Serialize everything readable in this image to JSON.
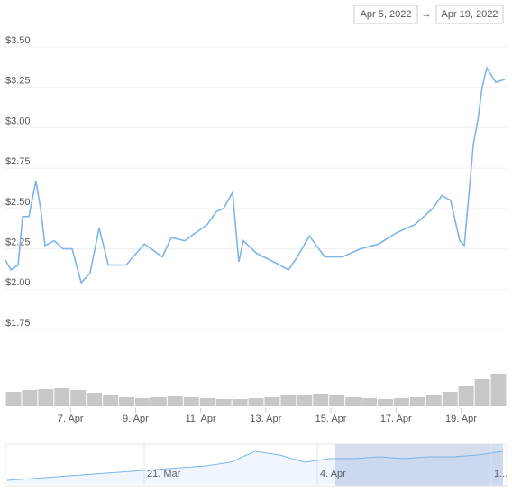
{
  "range": {
    "from": "Apr 5, 2022",
    "separator": "→",
    "to": "Apr 19, 2022"
  },
  "chart_data": {
    "type": "line",
    "x": [
      5.0,
      5.17,
      5.39,
      5.53,
      5.72,
      5.94,
      6.08,
      6.22,
      6.5,
      6.77,
      7.05,
      7.33,
      7.6,
      7.88,
      8.16,
      8.71,
      9.27,
      9.82,
      10.1,
      10.51,
      11.2,
      11.48,
      11.7,
      11.98,
      12.17,
      12.31,
      12.73,
      13.14,
      13.7,
      13.97,
      14.34,
      14.81,
      15.36,
      15.91,
      16.47,
      17.02,
      17.58,
      18.13,
      18.41,
      18.68,
      18.96,
      19.1,
      19.38,
      19.52,
      19.65,
      19.79,
      20.07,
      20.35
    ],
    "series": [
      {
        "color": "#7cb5ec",
        "values": [
          2.18,
          2.12,
          2.15,
          2.45,
          2.45,
          2.67,
          2.5,
          2.27,
          2.3,
          2.25,
          2.25,
          2.04,
          2.1,
          2.38,
          2.15,
          2.15,
          2.28,
          2.2,
          2.32,
          2.3,
          2.4,
          2.48,
          2.5,
          2.6,
          2.17,
          2.3,
          2.22,
          2.18,
          2.12,
          2.2,
          2.33,
          2.2,
          2.2,
          2.25,
          2.28,
          2.35,
          2.4,
          2.5,
          2.58,
          2.55,
          2.3,
          2.27,
          2.9,
          3.05,
          3.25,
          3.37,
          3.28,
          3.3
        ]
      }
    ],
    "xlim": [
      5.0,
      20.4
    ],
    "ylim": [
      1.75,
      3.5
    ],
    "yticks": [
      {
        "value": 1.75,
        "label": "$1.75"
      },
      {
        "value": 2.0,
        "label": "$2.00"
      },
      {
        "value": 2.25,
        "label": "$2.25"
      },
      {
        "value": 2.5,
        "label": "$2.50"
      },
      {
        "value": 2.75,
        "label": "$2.75"
      },
      {
        "value": 3.0,
        "label": "$3.00"
      },
      {
        "value": 3.25,
        "label": "$3.25"
      },
      {
        "value": 3.5,
        "label": "$3.50"
      }
    ],
    "xticks": [
      {
        "value": 7,
        "label": "7. Apr"
      },
      {
        "value": 9,
        "label": "9. Apr"
      },
      {
        "value": 11,
        "label": "11. Apr"
      },
      {
        "value": 13,
        "label": "13. Apr"
      },
      {
        "value": 15,
        "label": "15. Apr"
      },
      {
        "value": 17,
        "label": "17. Apr"
      },
      {
        "value": 19,
        "label": "19. Apr"
      }
    ],
    "grid": true,
    "volume": {
      "color": "#c8c8c8",
      "ylim": [
        0,
        40
      ],
      "values": [
        16,
        18,
        19,
        20,
        18,
        15,
        12,
        10,
        9,
        10,
        11,
        10,
        9,
        8,
        8,
        9,
        10,
        12,
        13,
        14,
        12,
        10,
        9,
        8,
        9,
        10,
        12,
        16,
        22,
        30,
        36
      ]
    },
    "navigator": {
      "color": "#7cb5ec",
      "ylim": [
        0,
        10
      ],
      "values": [
        1,
        1.5,
        2,
        2.5,
        3,
        3.5,
        4,
        4.5,
        5,
        6,
        9,
        8,
        6,
        7,
        7,
        7.5,
        7,
        7.5,
        7.5,
        8,
        9
      ],
      "labels": [
        "21. Mar",
        "4. Apr",
        "1..."
      ]
    }
  }
}
